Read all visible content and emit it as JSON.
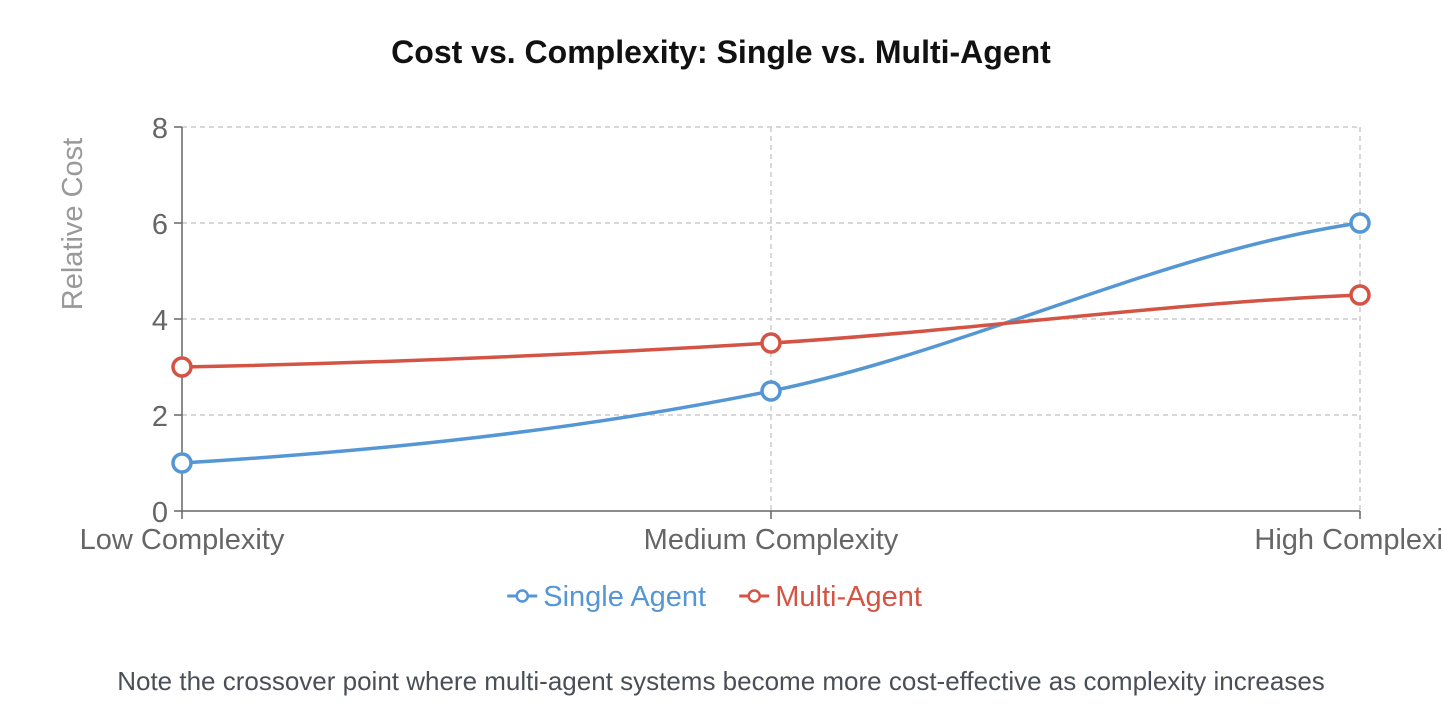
{
  "title": "Cost vs. Complexity: Single vs. Multi-Agent",
  "footnote": "Note the crossover point where multi-agent systems become more cost-effective as complexity increases",
  "chart_data": {
    "type": "line",
    "title": "Cost vs. Complexity: Single vs. Multi-Agent",
    "xlabel": "",
    "ylabel": "Relative Cost",
    "categories": [
      "Low Complexity",
      "Medium Complexity",
      "High Complexity"
    ],
    "ylim": [
      0,
      8
    ],
    "yticks": [
      0,
      2,
      4,
      6,
      8
    ],
    "grid": true,
    "legend_position": "bottom",
    "series": [
      {
        "name": "Single Agent",
        "values": [
          1,
          2.5,
          6
        ],
        "color": "#5596d4"
      },
      {
        "name": "Multi-Agent",
        "values": [
          3,
          3.5,
          4.5
        ],
        "color": "#d35444"
      }
    ]
  }
}
